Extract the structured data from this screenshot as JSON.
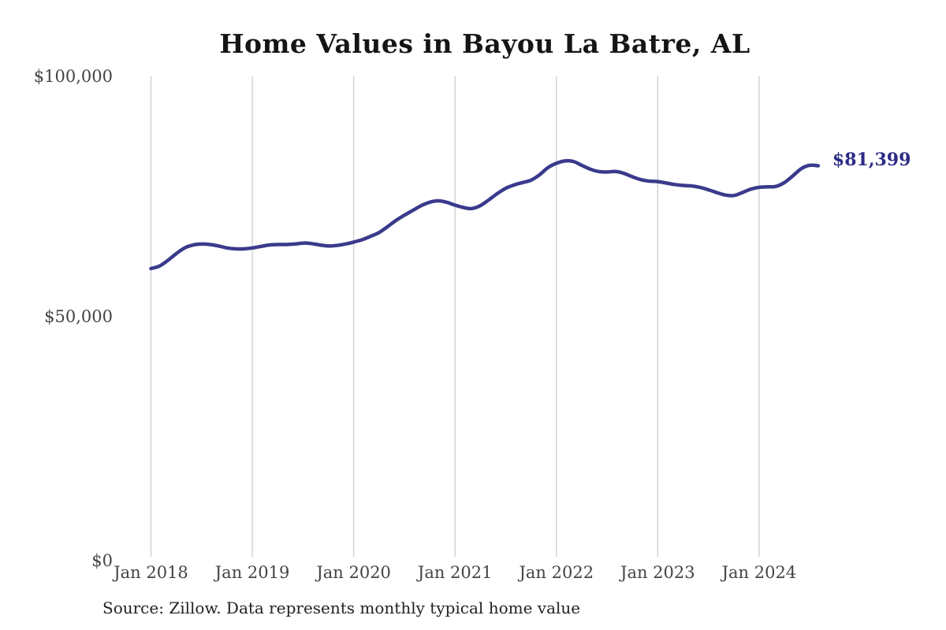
{
  "title": "Home Values in Bayou La Batre, AL",
  "source_note": "Source: Zillow. Data represents monthly typical home value",
  "end_label": "$81,399",
  "colors": {
    "line": "#3a3a8c",
    "end_label": "#2c2c86",
    "grid": "#cccccc",
    "title": "#151515",
    "axis_text": "#444444",
    "source_text": "#222222",
    "background": "#ffffff"
  },
  "y_axis": {
    "ticks": [
      "$100,000",
      "$50,000",
      "$0"
    ],
    "min": 0,
    "max": 100000
  },
  "x_axis": {
    "ticks": [
      "Jan 2018",
      "Jan 2019",
      "Jan 2020",
      "Jan 2021",
      "Jan 2022",
      "Jan 2023",
      "Jan 2024"
    ]
  },
  "chart_data": {
    "type": "line",
    "title": "Home Values in Bayou La Batre, AL",
    "xlabel": "",
    "ylabel": "",
    "ylim": [
      0,
      100000
    ],
    "grid": "vertical-only",
    "legend": "none",
    "end_annotation": "$81,399",
    "series_name": "Monthly typical home value",
    "x": [
      "2018-01",
      "2018-02",
      "2018-03",
      "2018-04",
      "2018-05",
      "2018-06",
      "2018-07",
      "2018-08",
      "2018-09",
      "2018-10",
      "2018-11",
      "2018-12",
      "2019-01",
      "2019-02",
      "2019-03",
      "2019-04",
      "2019-05",
      "2019-06",
      "2019-07",
      "2019-08",
      "2019-09",
      "2019-10",
      "2019-11",
      "2019-12",
      "2020-01",
      "2020-02",
      "2020-03",
      "2020-04",
      "2020-05",
      "2020-06",
      "2020-07",
      "2020-08",
      "2020-09",
      "2020-10",
      "2020-11",
      "2020-12",
      "2021-01",
      "2021-02",
      "2021-03",
      "2021-04",
      "2021-05",
      "2021-06",
      "2021-07",
      "2021-08",
      "2021-09",
      "2021-10",
      "2021-11",
      "2021-12",
      "2022-01",
      "2022-02",
      "2022-03",
      "2022-04",
      "2022-05",
      "2022-06",
      "2022-07",
      "2022-08",
      "2022-09",
      "2022-10",
      "2022-11",
      "2022-12",
      "2023-01",
      "2023-02",
      "2023-03",
      "2023-04",
      "2023-05",
      "2023-06",
      "2023-07",
      "2023-08",
      "2023-09",
      "2023-10",
      "2023-11",
      "2023-12",
      "2024-01",
      "2024-02",
      "2024-03",
      "2024-04",
      "2024-05",
      "2024-06",
      "2024-07",
      "2024-08"
    ],
    "values": [
      60000,
      60500,
      61700,
      63100,
      64300,
      64900,
      65100,
      65000,
      64700,
      64300,
      64100,
      64100,
      64300,
      64600,
      64900,
      65000,
      65000,
      65100,
      65300,
      65200,
      64900,
      64700,
      64800,
      65100,
      65500,
      66000,
      66700,
      67500,
      68700,
      70000,
      71100,
      72100,
      73100,
      73800,
      74100,
      73800,
      73200,
      72700,
      72500,
      73100,
      74300,
      75600,
      76700,
      77400,
      77900,
      78400,
      79500,
      81000,
      81900,
      82400,
      82300,
      81500,
      80700,
      80200,
      80100,
      80200,
      79800,
      79100,
      78500,
      78200,
      78100,
      77800,
      77500,
      77300,
      77200,
      76900,
      76400,
      75800,
      75300,
      75200,
      75800,
      76500,
      76900,
      77000,
      77100,
      77900,
      79300,
      80800,
      81500,
      81399
    ]
  }
}
